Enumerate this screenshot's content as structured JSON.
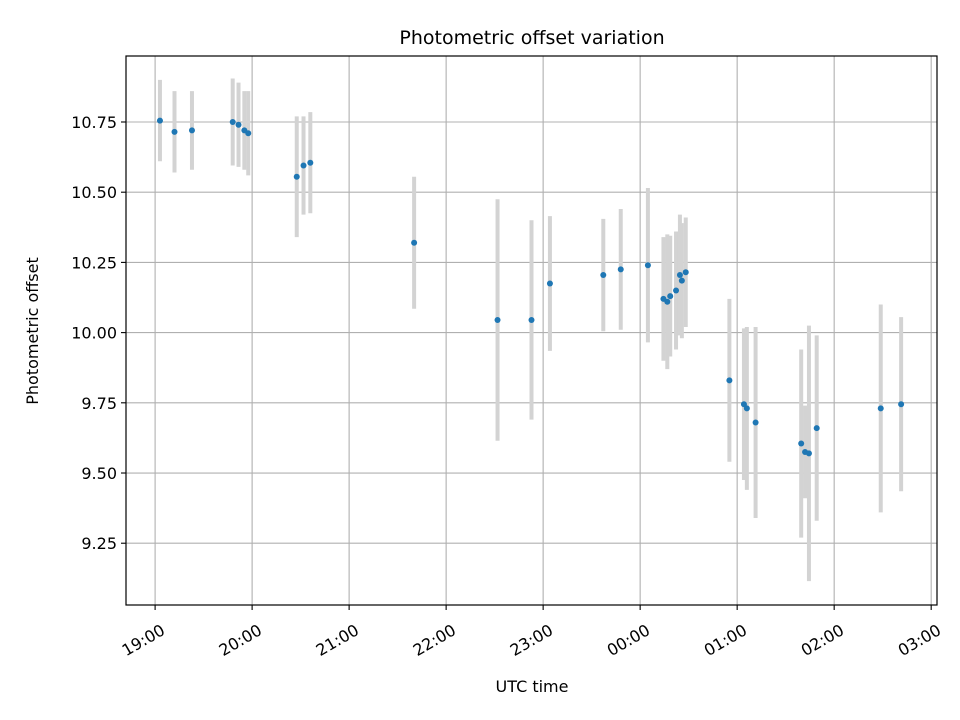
{
  "chart_data": {
    "type": "scatter",
    "title": "Photometric offset variation",
    "xlabel": "UTC time",
    "ylabel": "Photometric offset",
    "grid": true,
    "x_unit": "hours (UTC; values past 24 fall after midnight)",
    "xlim": [
      18.7,
      27.06
    ],
    "ylim": [
      9.03,
      10.985
    ],
    "x_ticks": [
      {
        "value": 19,
        "label": "19:00"
      },
      {
        "value": 20,
        "label": "20:00"
      },
      {
        "value": 21,
        "label": "21:00"
      },
      {
        "value": 22,
        "label": "22:00"
      },
      {
        "value": 23,
        "label": "23:00"
      },
      {
        "value": 24,
        "label": "00:00"
      },
      {
        "value": 25,
        "label": "01:00"
      },
      {
        "value": 26,
        "label": "02:00"
      },
      {
        "value": 27,
        "label": "03:00"
      }
    ],
    "y_ticks": [
      {
        "value": 9.25,
        "label": "9.25"
      },
      {
        "value": 9.5,
        "label": "9.50"
      },
      {
        "value": 9.75,
        "label": "9.75"
      },
      {
        "value": 10.0,
        "label": "10.00"
      },
      {
        "value": 10.25,
        "label": "10.25"
      },
      {
        "value": 10.5,
        "label": "10.50"
      },
      {
        "value": 10.75,
        "label": "10.75"
      }
    ],
    "colors": {
      "point": "#1f77b4",
      "errorbar": "#d3d3d3",
      "grid": "#b0b0b0"
    },
    "points": [
      {
        "x": 19.05,
        "y": 10.755,
        "err": 0.145
      },
      {
        "x": 19.2,
        "y": 10.715,
        "err": 0.145
      },
      {
        "x": 19.38,
        "y": 10.72,
        "err": 0.14
      },
      {
        "x": 19.8,
        "y": 10.75,
        "err": 0.155
      },
      {
        "x": 19.86,
        "y": 10.74,
        "err": 0.15
      },
      {
        "x": 19.92,
        "y": 10.72,
        "err": 0.14
      },
      {
        "x": 19.96,
        "y": 10.71,
        "err": 0.15
      },
      {
        "x": 20.46,
        "y": 10.555,
        "err": 0.215
      },
      {
        "x": 20.53,
        "y": 10.595,
        "err": 0.175
      },
      {
        "x": 20.6,
        "y": 10.605,
        "err": 0.18
      },
      {
        "x": 21.67,
        "y": 10.32,
        "err": 0.235
      },
      {
        "x": 22.53,
        "y": 10.045,
        "err": 0.43
      },
      {
        "x": 22.88,
        "y": 10.045,
        "err": 0.355
      },
      {
        "x": 23.07,
        "y": 10.175,
        "err": 0.24
      },
      {
        "x": 23.62,
        "y": 10.205,
        "err": 0.2
      },
      {
        "x": 23.8,
        "y": 10.225,
        "err": 0.215
      },
      {
        "x": 24.08,
        "y": 10.24,
        "err": 0.275
      },
      {
        "x": 24.24,
        "y": 10.12,
        "err": 0.22
      },
      {
        "x": 24.28,
        "y": 10.11,
        "err": 0.24
      },
      {
        "x": 24.31,
        "y": 10.13,
        "err": 0.215
      },
      {
        "x": 24.37,
        "y": 10.15,
        "err": 0.21
      },
      {
        "x": 24.41,
        "y": 10.205,
        "err": 0.215
      },
      {
        "x": 24.43,
        "y": 10.185,
        "err": 0.205
      },
      {
        "x": 24.47,
        "y": 10.215,
        "err": 0.195
      },
      {
        "x": 24.92,
        "y": 9.83,
        "err": 0.29
      },
      {
        "x": 25.07,
        "y": 9.745,
        "err": 0.27
      },
      {
        "x": 25.1,
        "y": 9.73,
        "err": 0.29
      },
      {
        "x": 25.19,
        "y": 9.68,
        "err": 0.34
      },
      {
        "x": 25.66,
        "y": 9.605,
        "err": 0.335
      },
      {
        "x": 25.7,
        "y": 9.575,
        "err": 0.165
      },
      {
        "x": 25.74,
        "y": 9.57,
        "err": 0.455
      },
      {
        "x": 25.82,
        "y": 9.66,
        "err": 0.33
      },
      {
        "x": 26.48,
        "y": 9.73,
        "err": 0.37
      },
      {
        "x": 26.69,
        "y": 9.745,
        "err": 0.31
      }
    ]
  }
}
